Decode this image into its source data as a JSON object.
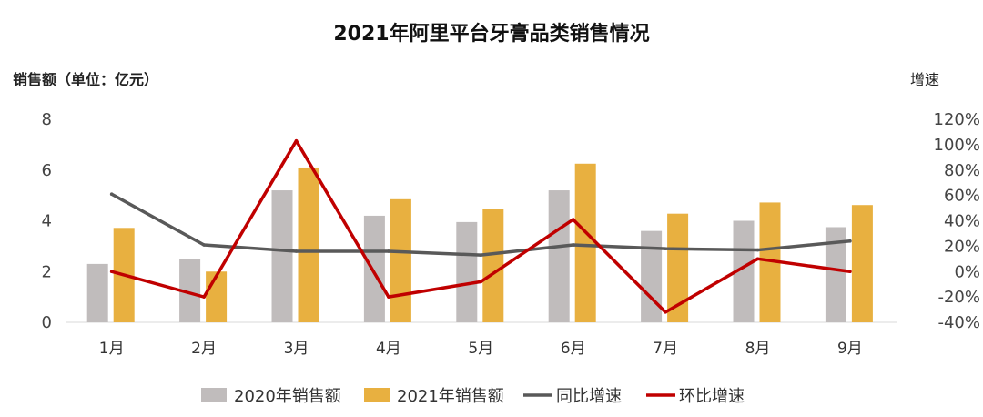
{
  "chart_data": {
    "type": "bar",
    "title": "2021年阿里平台牙膏品类销售情况",
    "ylabel": "销售额（单位：亿元）",
    "y2label": "增速",
    "categories": [
      "1月",
      "2月",
      "3月",
      "4月",
      "5月",
      "6月",
      "7月",
      "8月",
      "9月"
    ],
    "ylim": [
      0,
      8
    ],
    "y_ticks": [
      "0",
      "2",
      "4",
      "6",
      "8"
    ],
    "y2lim": [
      -0.4,
      1.2
    ],
    "y2_ticks": [
      "-40%",
      "-20%",
      "0%",
      "20%",
      "40%",
      "60%",
      "80%",
      "100%",
      "120%"
    ],
    "series": [
      {
        "name": "2020年销售额",
        "kind": "bar",
        "axis": "left",
        "color": "#c0bcbc",
        "values": [
          2.3,
          2.5,
          5.2,
          4.2,
          3.95,
          5.2,
          3.6,
          4.0,
          3.75
        ]
      },
      {
        "name": "2021年销售额",
        "kind": "bar",
        "axis": "left",
        "color": "#e8b040",
        "values": [
          3.72,
          2.0,
          6.1,
          4.85,
          4.45,
          6.25,
          4.28,
          4.72,
          4.62
        ]
      },
      {
        "name": "同比增速",
        "kind": "line",
        "axis": "right",
        "color": "#595959",
        "values": [
          0.61,
          0.21,
          0.16,
          0.16,
          0.13,
          0.21,
          0.18,
          0.17,
          0.24
        ]
      },
      {
        "name": "环比增速",
        "kind": "line",
        "axis": "right",
        "color": "#c00000",
        "values": [
          0.0,
          -0.2,
          1.03,
          -0.2,
          -0.08,
          0.41,
          -0.32,
          0.1,
          0.0
        ]
      }
    ],
    "legend_position": "bottom-center",
    "grid": false
  }
}
